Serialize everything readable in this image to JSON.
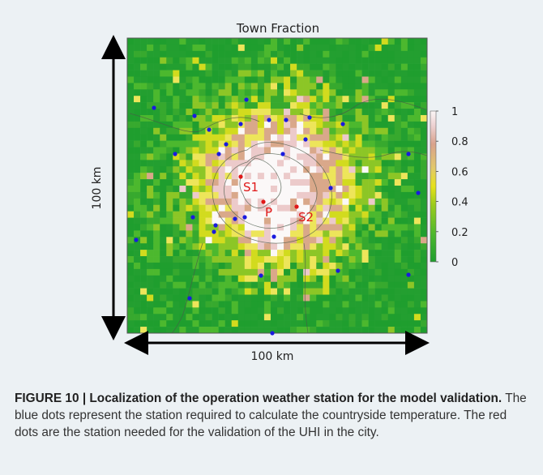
{
  "figure": {
    "plot_title": "Town Fraction",
    "y_axis_label": "100 km",
    "x_axis_label": "100 km",
    "colorbar_ticks": [
      "1",
      "0.8",
      "0.6",
      "0.4",
      "0.2",
      "0"
    ],
    "station_labels": [
      "S1",
      "P",
      "S2"
    ],
    "colors": {
      "panel_bg": "#ecf1f4",
      "blue_station": "#1a1adf",
      "red_station": "#e01818",
      "colormap": [
        "#1f9e2e",
        "#4cb82e",
        "#c7dc0f",
        "#f0ee3c",
        "#d9b48c",
        "#f4e8e8",
        "#ffffff"
      ]
    }
  },
  "caption": {
    "label": "FIGURE 10 | Localization of the operation weather station for the model validation.",
    "text": " The blue dots represent the station required to calculate the countryside temperature. The red dots are the station needed for the validation of the UHI in the city."
  }
}
